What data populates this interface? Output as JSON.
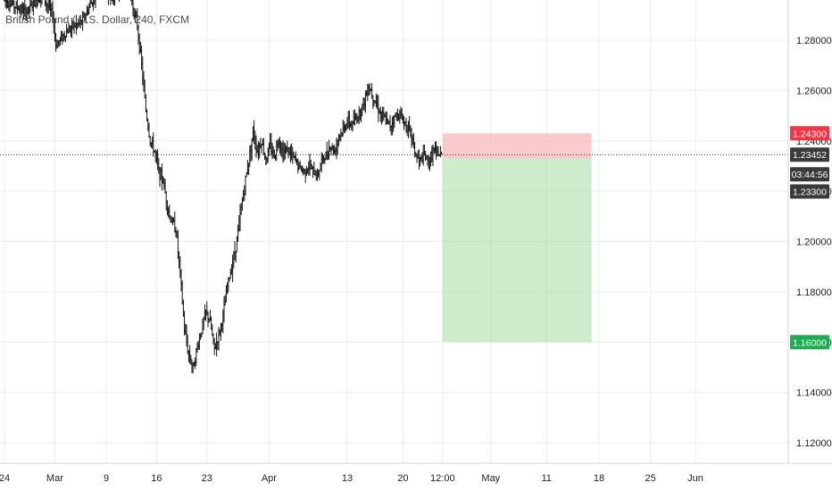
{
  "chart_data": {
    "type": "ohlc",
    "title": "British Pound / U.S. Dollar, 240, FXCM",
    "ylim": [
      1.11,
      1.3
    ],
    "y_ticks": [
      "1.12000",
      "1.14000",
      "1.16000",
      "1.18000",
      "1.20000",
      "1.22000",
      "1.24000",
      "1.26000",
      "1.28000"
    ],
    "x_ticks": [
      "24",
      "Mar",
      "9",
      "16",
      "23",
      "Apr",
      "13",
      "20",
      "12:00",
      "May",
      "11",
      "18",
      "25",
      "Jun"
    ],
    "x_tick_index": [
      0,
      47,
      95,
      142,
      189,
      247,
      320,
      372,
      409,
      454,
      506,
      555,
      603,
      645
    ],
    "grid": true,
    "current_price": "1.23452",
    "countdown": "03:44:56",
    "entry_price": "1.23300",
    "stop_price": "1.24300",
    "target_price": "1.16000",
    "position": {
      "side": "short",
      "start_index": 409,
      "end_index": 548,
      "entry": 1.233,
      "stop": 1.243,
      "target": 1.16
    },
    "series": [
      {
        "path": [
          [
            0,
            1.296
          ],
          [
            20,
            1.291
          ],
          [
            35,
            1.298
          ],
          [
            45,
            1.29
          ],
          [
            48,
            1.278
          ],
          [
            55,
            1.282
          ],
          [
            62,
            1.285
          ],
          [
            72,
            1.287
          ],
          [
            78,
            1.292
          ],
          [
            88,
            1.302
          ],
          [
            100,
            1.296
          ],
          [
            112,
            1.302
          ],
          [
            118,
            1.297
          ],
          [
            124,
            1.286
          ],
          [
            128,
            1.27
          ],
          [
            132,
            1.252
          ],
          [
            136,
            1.24
          ],
          [
            140,
            1.236
          ],
          [
            144,
            1.228
          ],
          [
            148,
            1.224
          ],
          [
            154,
            1.21
          ],
          [
            160,
            1.205
          ],
          [
            164,
            1.187
          ],
          [
            168,
            1.165
          ],
          [
            172,
            1.155
          ],
          [
            176,
            1.15
          ],
          [
            180,
            1.158
          ],
          [
            184,
            1.165
          ],
          [
            188,
            1.172
          ],
          [
            192,
            1.168
          ],
          [
            196,
            1.157
          ],
          [
            200,
            1.163
          ],
          [
            204,
            1.17
          ],
          [
            208,
            1.182
          ],
          [
            212,
            1.19
          ],
          [
            216,
            1.198
          ],
          [
            220,
            1.21
          ],
          [
            224,
            1.222
          ],
          [
            228,
            1.232
          ],
          [
            232,
            1.244
          ],
          [
            236,
            1.236
          ],
          [
            240,
            1.24
          ],
          [
            244,
            1.232
          ],
          [
            248,
            1.238
          ],
          [
            252,
            1.234
          ],
          [
            256,
            1.241
          ],
          [
            260,
            1.235
          ],
          [
            264,
            1.237
          ],
          [
            268,
            1.234
          ],
          [
            272,
            1.232
          ],
          [
            276,
            1.229
          ],
          [
            280,
            1.228
          ],
          [
            284,
            1.23
          ],
          [
            288,
            1.228
          ],
          [
            292,
            1.226
          ],
          [
            296,
            1.232
          ],
          [
            300,
            1.234
          ],
          [
            304,
            1.238
          ],
          [
            308,
            1.236
          ],
          [
            312,
            1.242
          ],
          [
            316,
            1.244
          ],
          [
            320,
            1.248
          ],
          [
            324,
            1.246
          ],
          [
            330,
            1.25
          ],
          [
            336,
            1.256
          ],
          [
            340,
            1.262
          ],
          [
            344,
            1.258
          ],
          [
            348,
            1.254
          ],
          [
            352,
            1.25
          ],
          [
            356,
            1.248
          ],
          [
            360,
            1.246
          ],
          [
            364,
            1.249
          ],
          [
            368,
            1.251
          ],
          [
            372,
            1.248
          ],
          [
            376,
            1.246
          ],
          [
            380,
            1.242
          ],
          [
            384,
            1.234
          ],
          [
            388,
            1.232
          ],
          [
            392,
            1.234
          ],
          [
            396,
            1.231
          ],
          [
            400,
            1.236
          ],
          [
            404,
            1.235
          ],
          [
            408,
            1.234
          ]
        ]
      }
    ]
  }
}
